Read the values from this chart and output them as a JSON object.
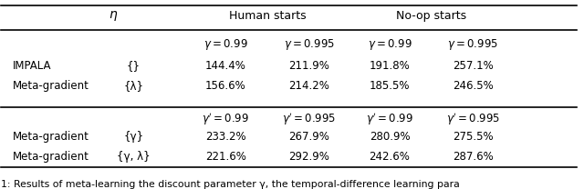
{
  "fig_width": 6.4,
  "fig_height": 2.08,
  "dpi": 100,
  "data_rows1": [
    [
      "IMPALA",
      "{}",
      "144.4%",
      "211.9%",
      "191.8%",
      "257.1%"
    ],
    [
      "Meta-gradient",
      "{λ}",
      "156.6%",
      "214.2%",
      "185.5%",
      "246.5%"
    ]
  ],
  "data_rows2": [
    [
      "Meta-gradient",
      "{γ}",
      "233.2%",
      "267.9%",
      "280.9%",
      "275.5%"
    ],
    [
      "Meta-gradient",
      "{γ, λ}",
      "221.6%",
      "292.9%",
      "242.6%",
      "287.6%"
    ]
  ],
  "caption": "1: Results of meta-learning the discount parameter γ, the temporal-difference learning para",
  "background_color": "#ffffff"
}
